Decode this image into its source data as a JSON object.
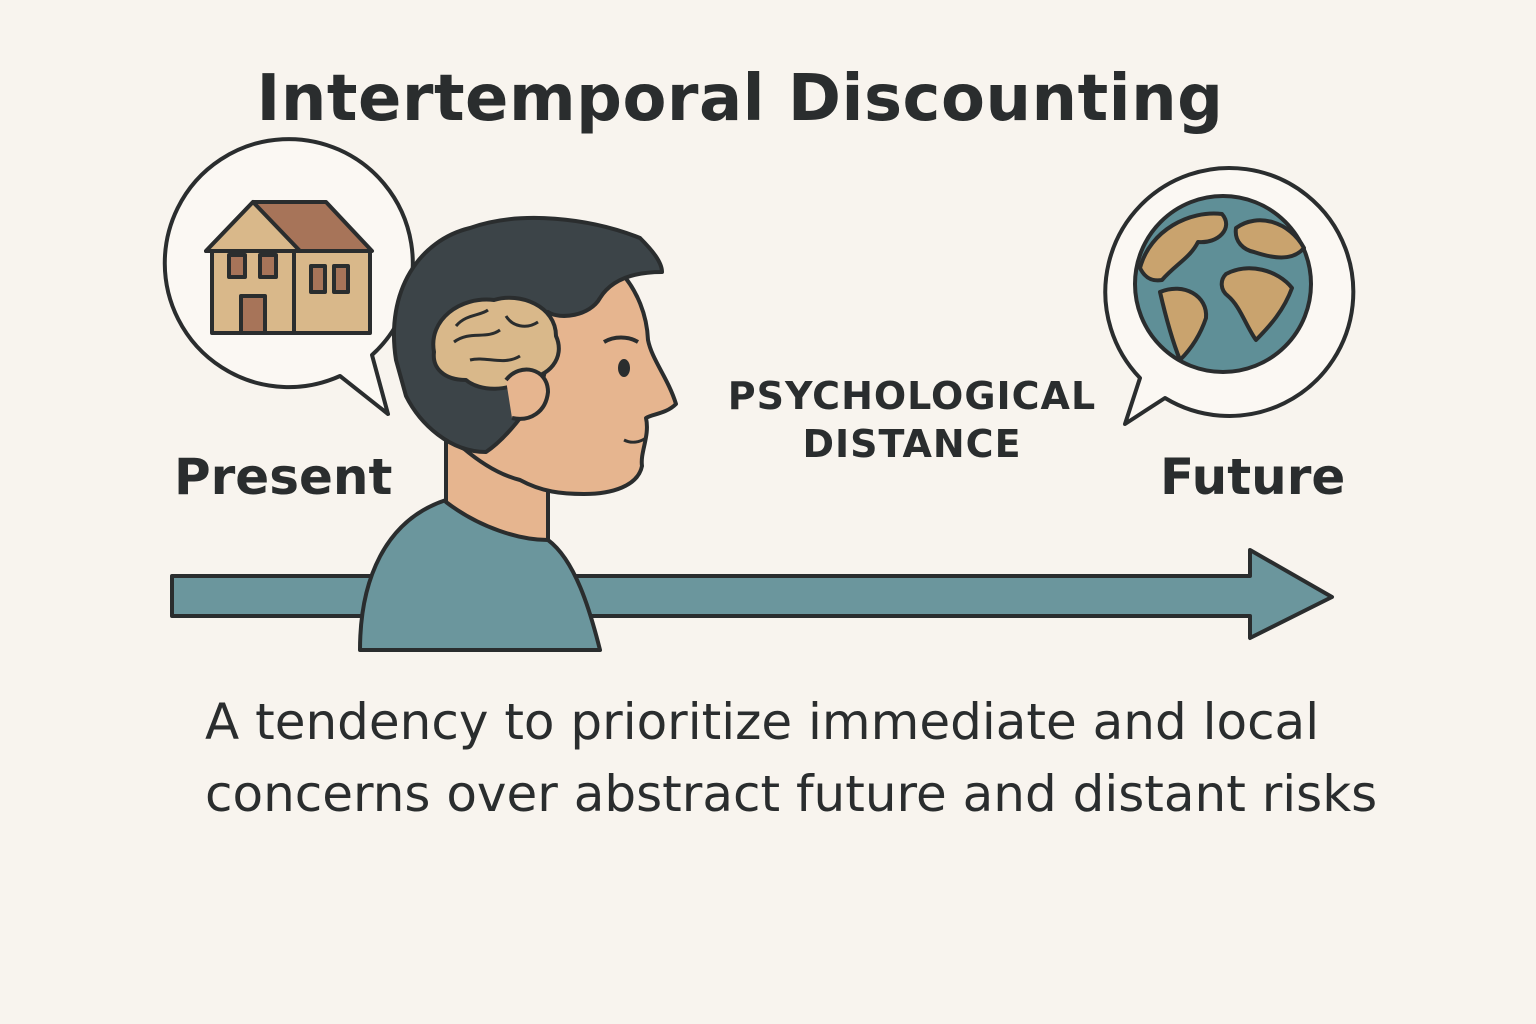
{
  "title": "Intertemporal Discounting",
  "labels": {
    "present": "Present",
    "future": "Future"
  },
  "distance": {
    "line1": "PSYCHOLOGICAL",
    "line2": "DISTANCE"
  },
  "description": "A tendency to prioritize immediate and local concerns over abstract future and distant risks",
  "icons": {
    "present_bubble": "house-icon",
    "future_bubble": "globe-icon",
    "person": "head-profile-icon",
    "brain": "brain-icon",
    "timeline": "arrow-right-icon"
  },
  "colors": {
    "background": "#f8f4ee",
    "outline": "#2a2d2e",
    "arrow": "#6b969d",
    "skin": "#e6b58f",
    "hair": "#3c4448",
    "shirt": "#6b969d",
    "house_wall": "#d9b88a",
    "house_roof": "#a77459",
    "ocean": "#5f8f97",
    "land": "#c9a36e"
  }
}
